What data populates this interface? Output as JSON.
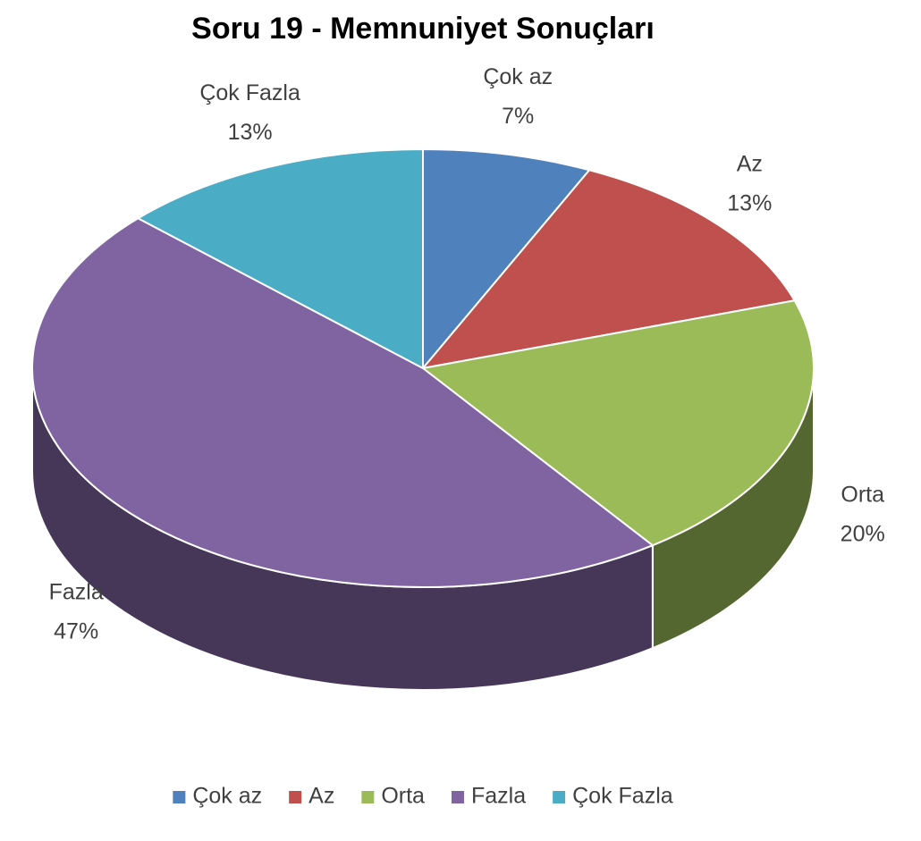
{
  "chart_data": {
    "type": "pie",
    "title": "Soru 19 - Memnuniyet Sonuçları",
    "categories": [
      "Çok az",
      "Az",
      "Orta",
      "Fazla",
      "Çok Fazla"
    ],
    "values": [
      7,
      13,
      20,
      47,
      13
    ],
    "value_labels": [
      "7%",
      "13%",
      "20%",
      "47%",
      "13%"
    ],
    "colors": [
      "#4f81bd",
      "#c0504d",
      "#9bbb59",
      "#8064a2",
      "#4bacc6"
    ],
    "legend": "bottom"
  }
}
